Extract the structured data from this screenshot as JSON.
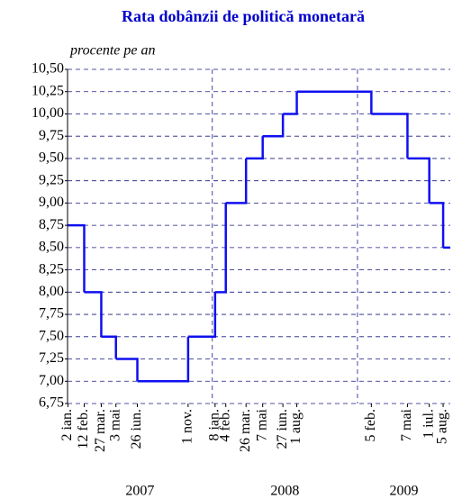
{
  "chart_data": {
    "type": "step-line",
    "title": "Rata dobânzii de politică monetară",
    "subtitle": "procente pe an",
    "xlim": [
      "2007-01-01",
      "2009-08-23"
    ],
    "ylim": [
      6.75,
      10.5
    ],
    "yticks": [
      {
        "value": 6.75,
        "label": "6,75"
      },
      {
        "value": 7,
        "label": "7,00"
      },
      {
        "value": 7.25,
        "label": "7,25"
      },
      {
        "value": 7.5,
        "label": "7,50"
      },
      {
        "value": 7.75,
        "label": "7,75"
      },
      {
        "value": 8,
        "label": "8,00"
      },
      {
        "value": 8.25,
        "label": "8,25"
      },
      {
        "value": 8.5,
        "label": "8,50"
      },
      {
        "value": 8.75,
        "label": "8,75"
      },
      {
        "value": 9,
        "label": "9,00"
      },
      {
        "value": 9.25,
        "label": "9,25"
      },
      {
        "value": 9.5,
        "label": "9,50"
      },
      {
        "value": 9.75,
        "label": "9,75"
      },
      {
        "value": 10,
        "label": "10,00"
      },
      {
        "value": 10.25,
        "label": "10,25"
      },
      {
        "value": 10.5,
        "label": "10,50"
      }
    ],
    "xticks": [
      {
        "value": "2007-01-02",
        "label": "2 ian."
      },
      {
        "value": "2007-02-12",
        "label": "12 feb."
      },
      {
        "value": "2007-03-27",
        "label": "27 mar."
      },
      {
        "value": "2007-05-03",
        "label": "3 mai"
      },
      {
        "value": "2007-06-26",
        "label": "26 iun."
      },
      {
        "value": "2007-11-01",
        "label": "1 nov."
      },
      {
        "value": "2008-01-08",
        "label": "8 ian."
      },
      {
        "value": "2008-02-04",
        "label": "4 feb."
      },
      {
        "value": "2008-03-26",
        "label": "26 mar."
      },
      {
        "value": "2008-05-07",
        "label": "7 mai"
      },
      {
        "value": "2008-06-27",
        "label": "27 iun."
      },
      {
        "value": "2008-08-01",
        "label": "1 aug."
      },
      {
        "value": "2009-02-05",
        "label": "5 feb."
      },
      {
        "value": "2009-05-07",
        "label": "7 mai"
      },
      {
        "value": "2009-07-01",
        "label": "1 iul."
      },
      {
        "value": "2009-08-05",
        "label": "5 aug."
      }
    ],
    "years": [
      "2007",
      "2008",
      "2009"
    ],
    "grid": true,
    "series": [
      {
        "color": "#1010f0",
        "x": [
          "2007-01-02",
          "2007-02-12",
          "2007-03-27",
          "2007-05-03",
          "2007-06-26",
          "2007-11-01",
          "2008-01-08",
          "2008-02-04",
          "2008-03-26",
          "2008-05-07",
          "2008-06-27",
          "2008-08-01",
          "2009-02-05",
          "2009-05-07",
          "2009-07-01",
          "2009-08-05"
        ],
        "values": [
          8.75,
          8,
          7.5,
          7.25,
          7,
          7.5,
          8,
          9,
          9.5,
          9.75,
          10,
          10.25,
          10,
          9.5,
          9,
          8.5
        ]
      }
    ]
  }
}
